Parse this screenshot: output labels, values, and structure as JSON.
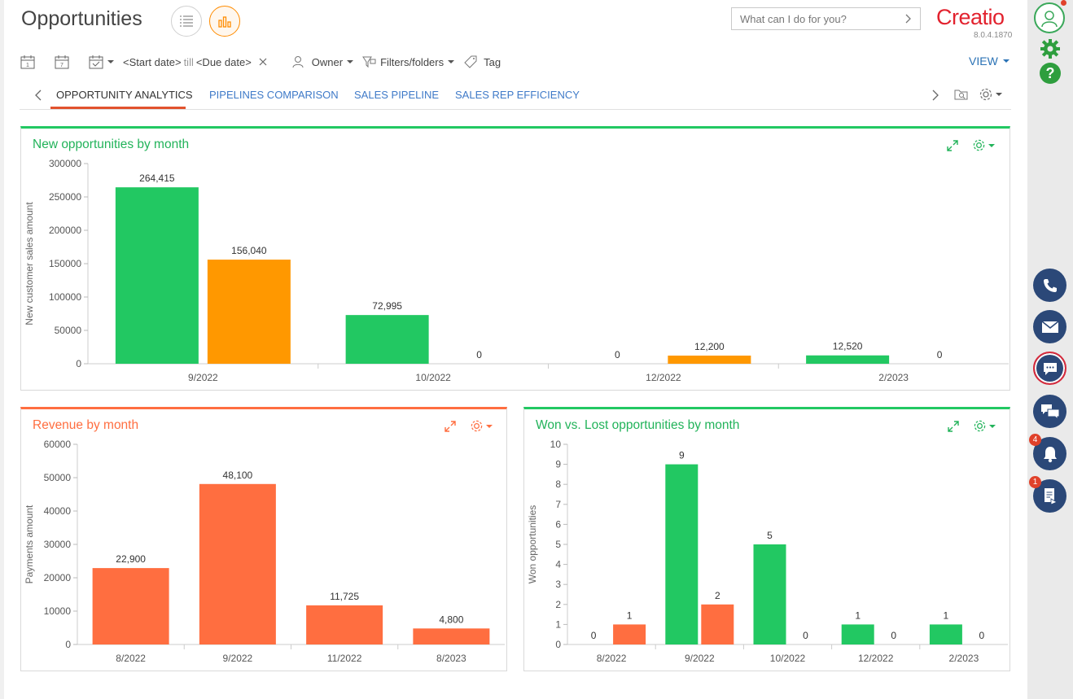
{
  "header": {
    "title": "Opportunities",
    "search_placeholder": "What can I do for you?",
    "logo": "Creatio",
    "version": "8.0.4.1870"
  },
  "filters": {
    "start_date": "<Start date>",
    "till": "till",
    "due_date": "<Due date>",
    "owner": "Owner",
    "filters_folders": "Filters/folders",
    "tag": "Tag",
    "view": "VIEW"
  },
  "tabs": [
    {
      "label": "OPPORTUNITY ANALYTICS",
      "active": true
    },
    {
      "label": "PIPELINES COMPARISON",
      "active": false
    },
    {
      "label": "SALES PIPELINE",
      "active": false
    },
    {
      "label": "SALES REP EFFICIENCY",
      "active": false
    }
  ],
  "colors": {
    "green": "#22c862",
    "orange": "#ff9800",
    "coral": "#ff6e40",
    "link_blue": "#3f7ac8",
    "sidebar_navy": "#2b4878"
  },
  "icons": {
    "list_view": "list-icon",
    "analytics_view": "bar-chart-icon",
    "profile": "profile-icon",
    "settings": "gear-icon",
    "help": "question-icon",
    "phone": "phone-icon",
    "email": "envelope-icon",
    "chat": "chat-icon",
    "feed": "messages-icon",
    "notifications": "bell-icon",
    "tasks": "document-icon"
  },
  "sidebar": {
    "notifications_count": "4",
    "tasks_count": "1"
  },
  "chart_data": [
    {
      "type": "bar",
      "title": "New opportunities by month",
      "ylabel": "New customer sales amount",
      "xlabel": "",
      "ylim": [
        0,
        300000
      ],
      "yticks": [
        0,
        50000,
        100000,
        150000,
        200000,
        250000,
        300000
      ],
      "categories": [
        "9/2022",
        "10/2022",
        "12/2022",
        "2/2023"
      ],
      "series": [
        {
          "values": [
            264415,
            72995,
            0,
            12520
          ],
          "labels": [
            "264,415",
            "72,995",
            "0",
            "12,520"
          ],
          "color": "#22c862"
        },
        {
          "values": [
            156040,
            0,
            12200,
            0
          ],
          "labels": [
            "156,040",
            "0",
            "12,200",
            "0"
          ],
          "color": "#ff9800"
        }
      ],
      "accent": "#22c862",
      "grid": false
    },
    {
      "type": "bar",
      "title": "Revenue by month",
      "ylabel": "Payments amount",
      "xlabel": "",
      "ylim": [
        0,
        60000
      ],
      "yticks": [
        0,
        10000,
        20000,
        30000,
        40000,
        50000,
        60000
      ],
      "categories": [
        "8/2022",
        "9/2022",
        "11/2022",
        "8/2023"
      ],
      "series": [
        {
          "values": [
            22900,
            48100,
            11725,
            4800
          ],
          "labels": [
            "22,900",
            "48,100",
            "11,725",
            "4,800"
          ],
          "color": "#ff6e40"
        }
      ],
      "accent": "#ff6e40",
      "grid": false
    },
    {
      "type": "bar",
      "title": "Won vs. Lost opportunities by month",
      "ylabel": "Won opportunities",
      "xlabel": "",
      "ylim": [
        0,
        10
      ],
      "yticks": [
        0,
        1,
        2,
        3,
        4,
        5,
        6,
        7,
        8,
        9,
        10
      ],
      "categories": [
        "8/2022",
        "9/2022",
        "10/2022",
        "12/2022",
        "2/2023"
      ],
      "series": [
        {
          "values": [
            0,
            9,
            5,
            1,
            1
          ],
          "labels": [
            "0",
            "9",
            "5",
            "1",
            "1"
          ],
          "color": "#22c862"
        },
        {
          "values": [
            1,
            2,
            0,
            0,
            0
          ],
          "labels": [
            "1",
            "2",
            "0",
            "0",
            "0"
          ],
          "color": "#ff6e40"
        }
      ],
      "accent": "#22c862",
      "grid": false
    }
  ]
}
